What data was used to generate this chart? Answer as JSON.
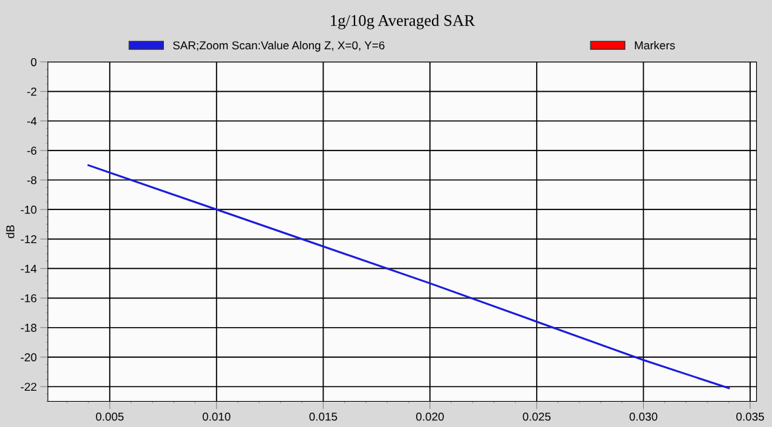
{
  "chart_data": {
    "type": "line",
    "title": "1g/10g Averaged SAR",
    "ylabel": "dB",
    "series": [
      {
        "name": "SAR;Zoom Scan:Value Along Z, X=0, Y=6",
        "color": "#1a1adc",
        "x": [
          0.004,
          0.01,
          0.015,
          0.02,
          0.025,
          0.03,
          0.034
        ],
        "values": [
          -7.0,
          -10.0,
          -12.5,
          -15.0,
          -17.6,
          -20.2,
          -22.1
        ]
      },
      {
        "name": "Markers",
        "color": "#ff0000"
      }
    ],
    "xlim": [
      0.0021,
      0.0353
    ],
    "xticks": [
      {
        "value": 0.005,
        "label": "0.005"
      },
      {
        "value": 0.01,
        "label": "0.010"
      },
      {
        "value": 0.015,
        "label": "0.015"
      },
      {
        "value": 0.02,
        "label": "0.020"
      },
      {
        "value": 0.025,
        "label": "0.025"
      },
      {
        "value": 0.03,
        "label": "0.030"
      },
      {
        "value": 0.035,
        "label": "0.035"
      }
    ],
    "ylim": [
      -23,
      0
    ],
    "yticks": [
      0,
      -2,
      -4,
      -6,
      -8,
      -10,
      -12,
      -14,
      -16,
      -18,
      -20,
      -22
    ],
    "grid": true,
    "legend": "top"
  }
}
